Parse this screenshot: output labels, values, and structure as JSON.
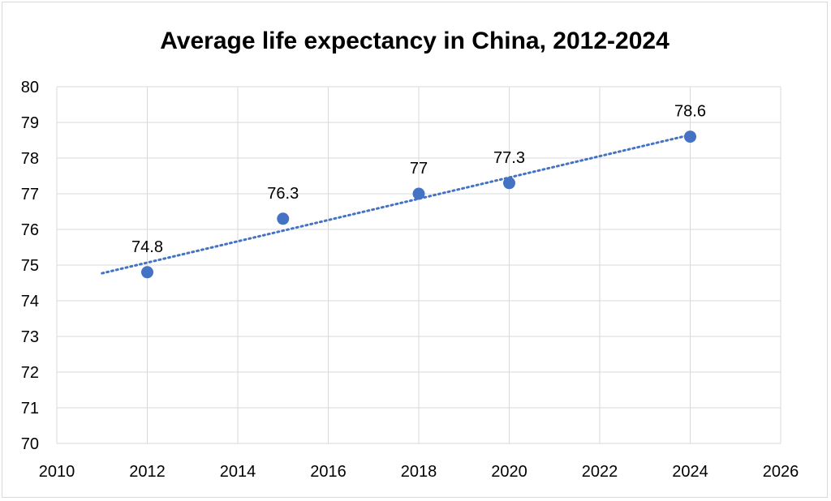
{
  "chart_data": {
    "type": "scatter",
    "title": "Average life expectancy in China, 2012-2024",
    "xlabel": "",
    "ylabel": "",
    "xlim": [
      2010,
      2026
    ],
    "ylim": [
      70,
      80
    ],
    "x_ticks": [
      2010,
      2012,
      2014,
      2016,
      2018,
      2020,
      2022,
      2024,
      2026
    ],
    "y_ticks": [
      70,
      71,
      72,
      73,
      74,
      75,
      76,
      77,
      78,
      79,
      80
    ],
    "grid": true,
    "legend": "none",
    "series": [
      {
        "name": "Life expectancy",
        "x": [
          2012,
          2015,
          2018,
          2020,
          2024
        ],
        "y": [
          74.8,
          76.3,
          77,
          77.3,
          78.6
        ],
        "labels": [
          "74.8",
          "76.3",
          "77",
          "77.3",
          "78.6"
        ]
      }
    ],
    "trendline": {
      "type": "linear",
      "style": "dotted",
      "x_start": 2011,
      "x_end": 2024
    },
    "colors": {
      "marker": "#4472c4",
      "trend": "#4472c4",
      "grid": "#d9d9d9"
    }
  }
}
